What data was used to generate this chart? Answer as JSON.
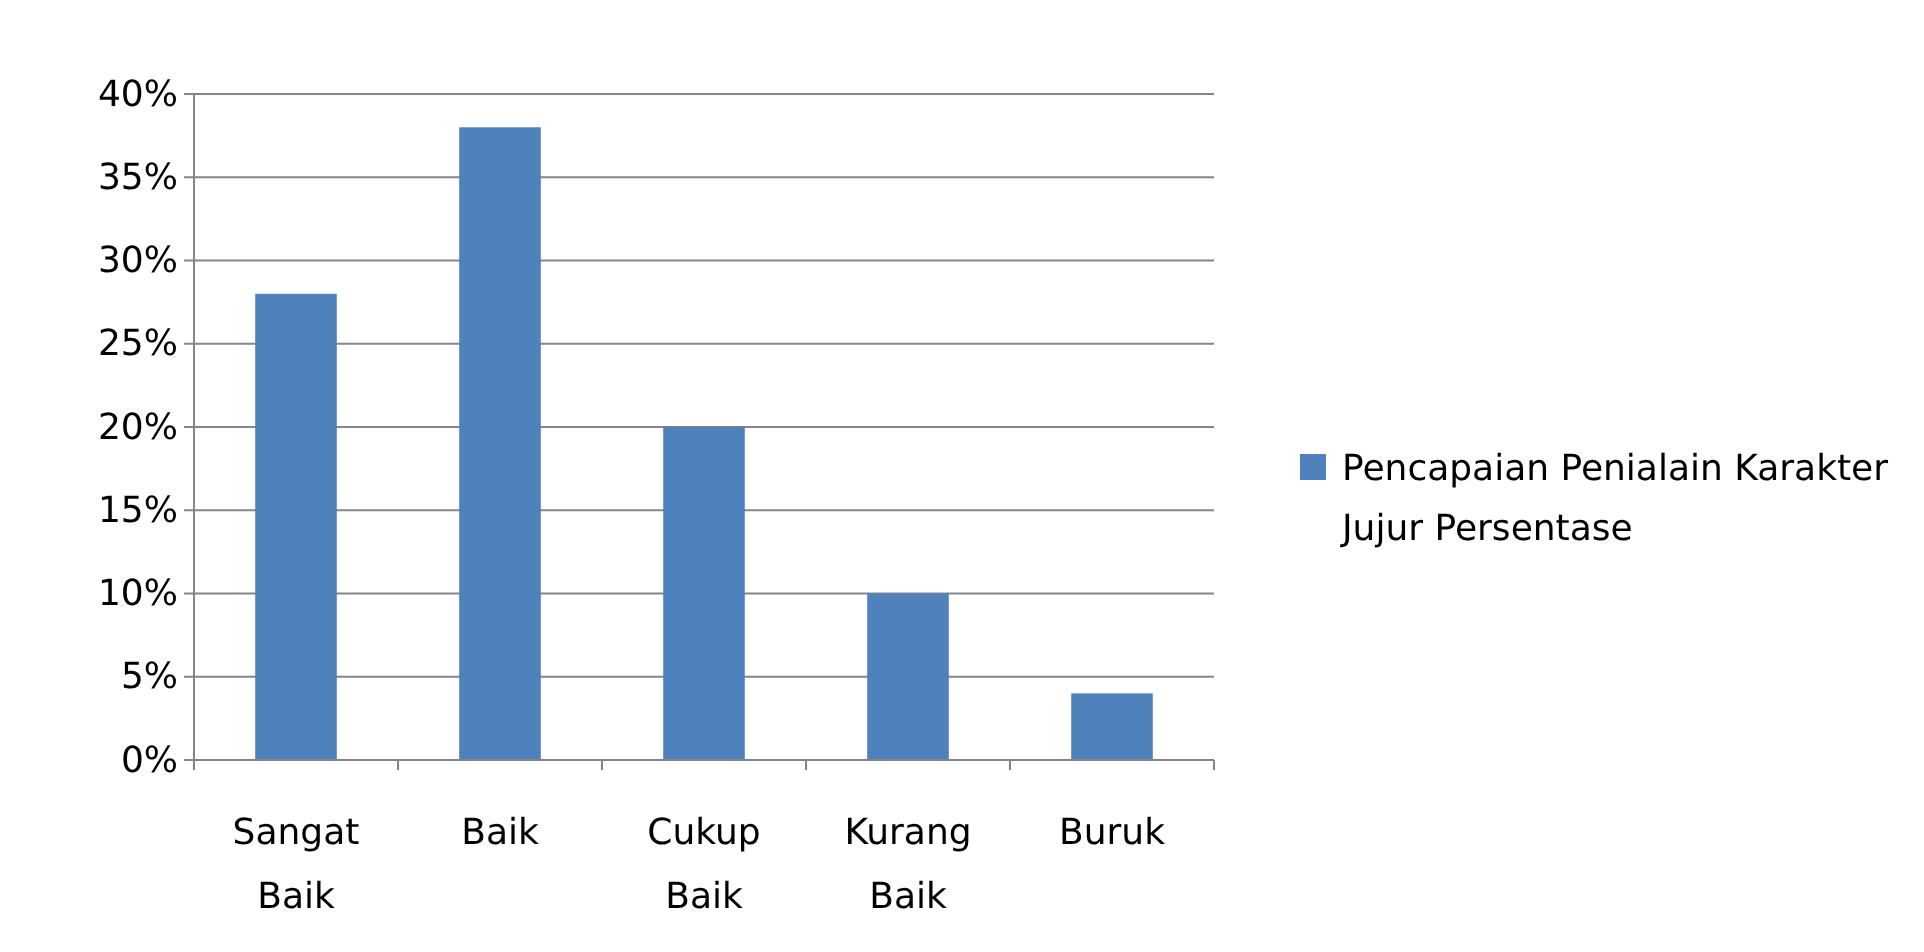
{
  "chart_data": {
    "type": "bar",
    "categories": [
      "Sangat Baik",
      "Baik",
      "Cukup Baik",
      "Kurang Baik",
      "Buruk"
    ],
    "series": [
      {
        "name": "Pencapaian Penialain Karakter Jujur Persentase",
        "color": "#4f81bd",
        "values": [
          28,
          38,
          20,
          10,
          4
        ]
      }
    ],
    "ylim": [
      0,
      40
    ],
    "yticks": [
      {
        "value": 0,
        "label": "0%"
      },
      {
        "value": 5,
        "label": "5%"
      },
      {
        "value": 10,
        "label": "10%"
      },
      {
        "value": 15,
        "label": "15%"
      },
      {
        "value": 20,
        "label": "20%"
      },
      {
        "value": 25,
        "label": "25%"
      },
      {
        "value": 30,
        "label": "30%"
      },
      {
        "value": 35,
        "label": "35%"
      },
      {
        "value": 40,
        "label": "40%"
      }
    ],
    "grid": "y",
    "legend": "right"
  }
}
